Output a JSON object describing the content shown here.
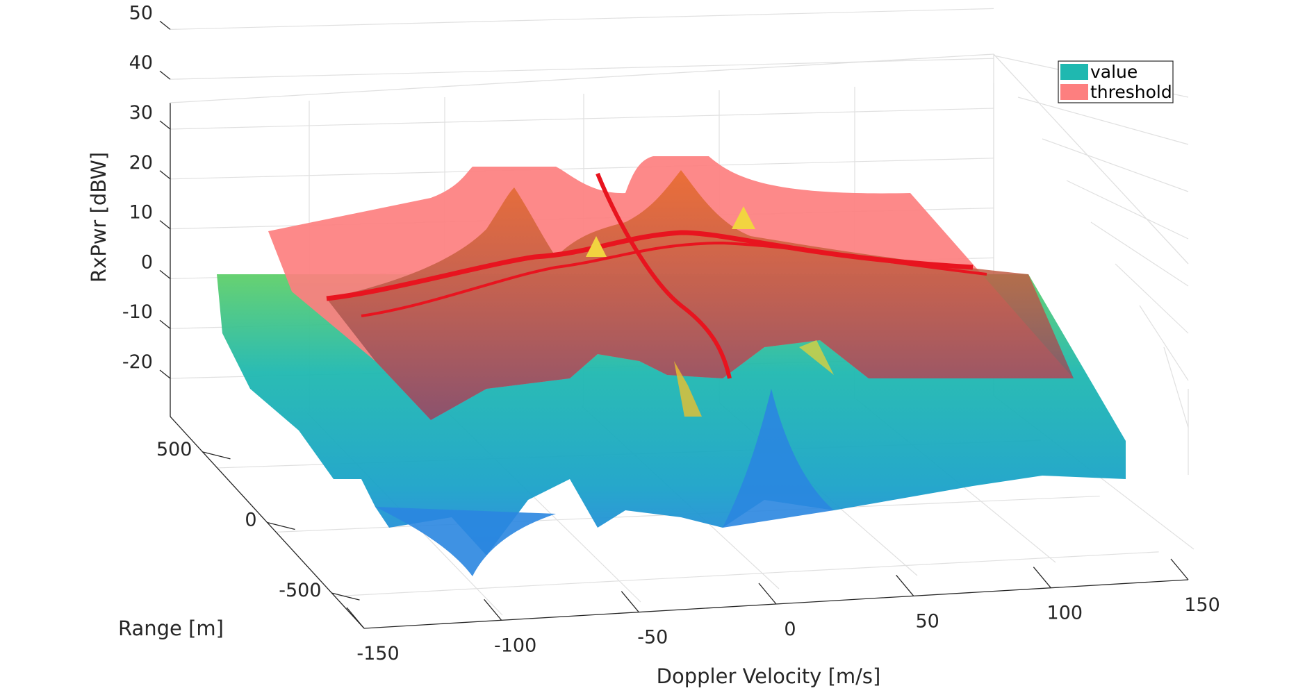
{
  "chart_data": {
    "type": "surface3d",
    "title": "",
    "xlabel": "Doppler Velocity [m/s]",
    "ylabel": "Range [m]",
    "zlabel": "RxPwr [dBW]",
    "xlim": [
      -150,
      150
    ],
    "ylim": [
      -750,
      750
    ],
    "zlim": [
      -25,
      50
    ],
    "grid": true,
    "legend_position": "top-right",
    "x_ticks": [
      "-150",
      "-100",
      "-50",
      "0",
      "50",
      "100",
      "150"
    ],
    "y_ticks": [
      "-500",
      "0",
      "500"
    ],
    "z_ticks": [
      "50",
      "40",
      "30",
      "20",
      "10",
      "0",
      "-10",
      "-20"
    ],
    "series": [
      {
        "name": "value",
        "color": "#1fb8b0",
        "colormap": "parula-like"
      },
      {
        "name": "threshold",
        "color": "#fd7f7f",
        "opacity": 0.9
      }
    ],
    "peaks": [
      {
        "series": "value",
        "doppler": -75,
        "range": 80,
        "rxpwr": 33
      },
      {
        "series": "value",
        "doppler": 5,
        "range": 400,
        "rxpwr": 38
      }
    ]
  }
}
